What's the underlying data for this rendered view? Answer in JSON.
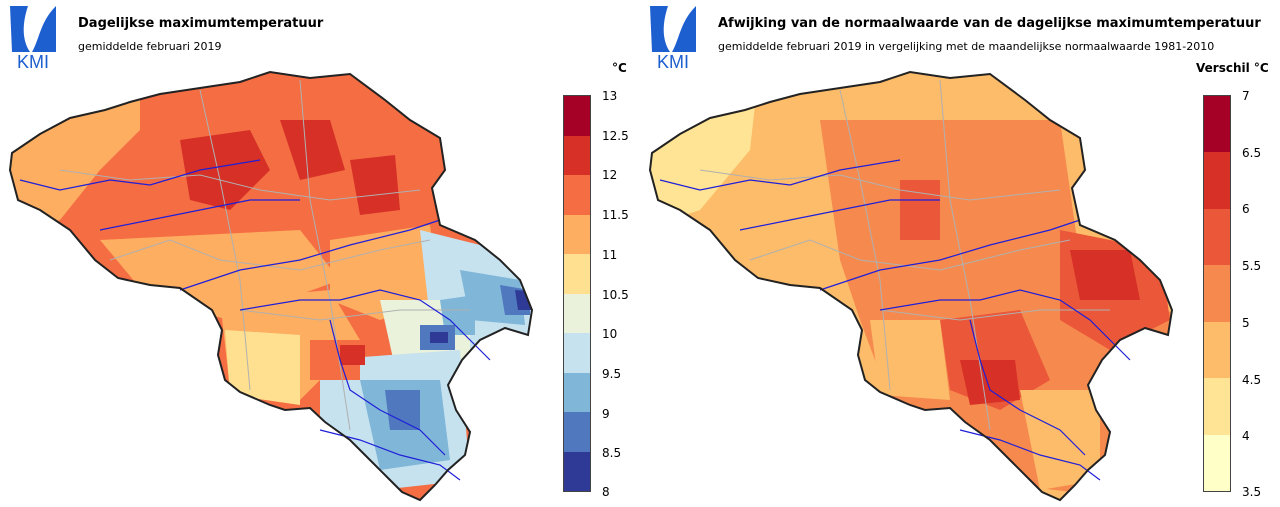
{
  "left": {
    "logo_text": "KMI",
    "title": "Dagelijkse maximumtemperatuur",
    "subtitle": "gemiddelde februari 2019",
    "unit": "°C",
    "legend_ticks": [
      "13",
      "12.5",
      "12",
      "11.5",
      "11",
      "10.5",
      "10",
      "9.5",
      "9",
      "8.5",
      "8"
    ],
    "legend_colors": [
      "#a50026",
      "#d73027",
      "#f46d43",
      "#fdae61",
      "#fee090",
      "#eaf2dc",
      "#c6e2ef",
      "#80b6d8",
      "#4f78be",
      "#2f3a96"
    ]
  },
  "right": {
    "logo_text": "KMI",
    "title": "Afwijking van de normaalwaarde van de dagelijkse maximumtemperatuur",
    "subtitle": "gemiddelde februari 2019 in vergelijking met de maandelijkse normaalwaarde 1981-2010",
    "unit": "Verschil °C",
    "legend_ticks": [
      "7",
      "6.5",
      "6",
      "5.5",
      "5",
      "4.5",
      "4",
      "3.5"
    ],
    "legend_colors": [
      "#a50026",
      "#d73027",
      "#ea5739",
      "#f68a4e",
      "#fdbc6a",
      "#fee494",
      "#ffffc8"
    ]
  }
}
